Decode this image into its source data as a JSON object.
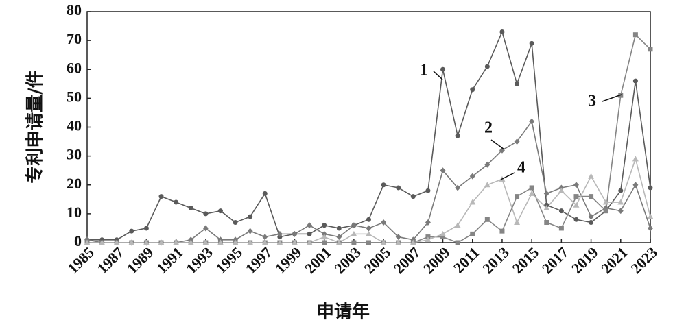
{
  "chart_data": {
    "type": "line",
    "xlabel": "申请年",
    "ylabel": "专利申请量/件",
    "x": [
      1985,
      1986,
      1987,
      1988,
      1989,
      1990,
      1991,
      1992,
      1993,
      1994,
      1995,
      1996,
      1997,
      1998,
      1999,
      2000,
      2001,
      2002,
      2003,
      2004,
      2005,
      2006,
      2007,
      2008,
      2009,
      2010,
      2011,
      2012,
      2013,
      2014,
      2015,
      2016,
      2017,
      2018,
      2019,
      2020,
      2021,
      2022,
      2023
    ],
    "xlim": [
      1985,
      2023
    ],
    "xticks": [
      1985,
      1987,
      1989,
      1991,
      1993,
      1995,
      1997,
      1999,
      2001,
      2003,
      2005,
      2007,
      2009,
      2011,
      2013,
      2015,
      2017,
      2019,
      2021,
      2023
    ],
    "ylim": [
      0,
      80
    ],
    "yticks": [
      0,
      10,
      20,
      30,
      40,
      50,
      60,
      70,
      80
    ],
    "annotations": [
      "1",
      "2",
      "3",
      "4"
    ],
    "series": [
      {
        "marker": "circle",
        "color": "#5a5a5a",
        "values": [
          1,
          1,
          1,
          4,
          5,
          16,
          14,
          12,
          10,
          11,
          7,
          9,
          17,
          2,
          3,
          3,
          6,
          5,
          6,
          8,
          20,
          19,
          16,
          18,
          60,
          37,
          53,
          61,
          73,
          55,
          69,
          13,
          11,
          8,
          7,
          11,
          18,
          56,
          19
        ]
      },
      {
        "marker": "diamond",
        "color": "#7a7a7a",
        "values": [
          1,
          0,
          0,
          0,
          0,
          0,
          0,
          1,
          5,
          1,
          1,
          4,
          2,
          3,
          3,
          6,
          3,
          2,
          6,
          5,
          7,
          2,
          1,
          7,
          25,
          19,
          23,
          27,
          32,
          35,
          42,
          17,
          19,
          20,
          9,
          12,
          11,
          20,
          5
        ]
      },
      {
        "marker": "square",
        "color": "#858585",
        "values": [
          0,
          0,
          0,
          0,
          0,
          0,
          0,
          0,
          0,
          0,
          0,
          0,
          0,
          0,
          0,
          0,
          0,
          0,
          0,
          0,
          0,
          0,
          0,
          2,
          2,
          0,
          3,
          8,
          4,
          16,
          19,
          7,
          5,
          16,
          16,
          11,
          51,
          72,
          67
        ]
      },
      {
        "marker": "triangle",
        "color": "#b8b8b8",
        "values": [
          0,
          0,
          0,
          0,
          0,
          0,
          0,
          0,
          0,
          0,
          0,
          0,
          0,
          0,
          0,
          0,
          2,
          0,
          3,
          3,
          0,
          0,
          0,
          1,
          3,
          6,
          14,
          20,
          22,
          7,
          17,
          12,
          18,
          13,
          23,
          14,
          14,
          29,
          9
        ]
      }
    ]
  }
}
